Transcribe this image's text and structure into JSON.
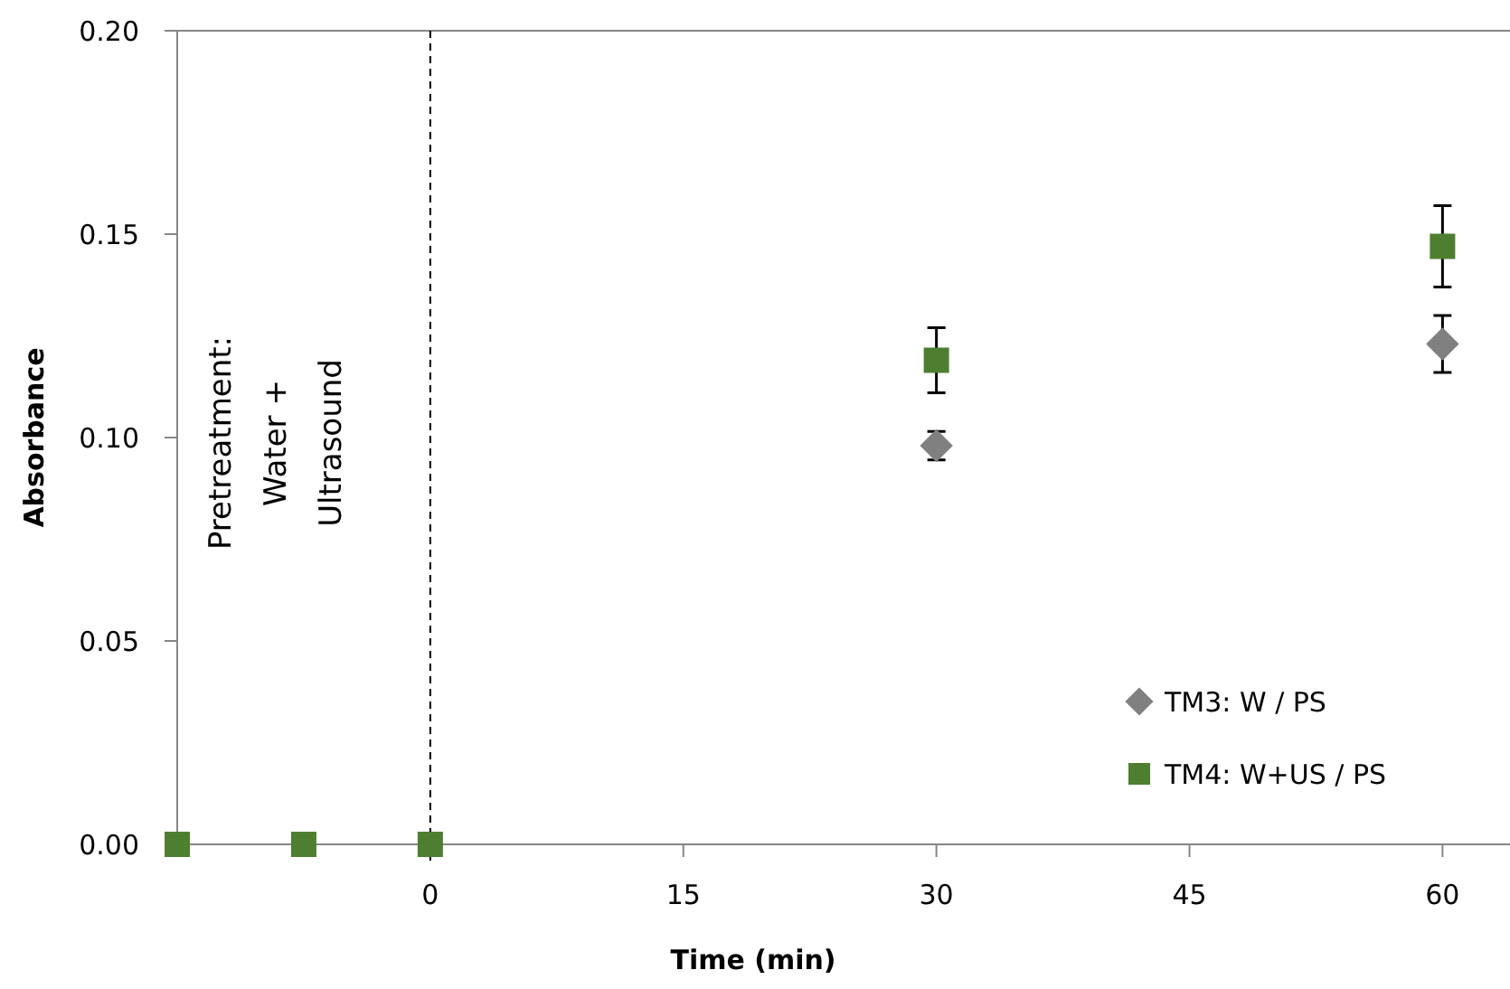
{
  "chart_data": {
    "type": "scatter",
    "xlabel": "Time (min)",
    "ylabel": "Absorbance",
    "xlim": [
      -15,
      64
    ],
    "ylim": [
      0,
      0.2
    ],
    "xticks": [
      0,
      15,
      30,
      45,
      60
    ],
    "yticks": [
      {
        "value": 0,
        "label": "0.00"
      },
      {
        "value": 0.05,
        "label": "0.05"
      },
      {
        "value": 0.1,
        "label": "0.10"
      },
      {
        "value": 0.15,
        "label": "0.15"
      },
      {
        "value": 0.2,
        "label": "0.20"
      }
    ],
    "series": [
      {
        "name": "TM3: W / PS",
        "color": "#808080",
        "marker": "diamond",
        "x": [
          30,
          60
        ],
        "values": [
          0.098,
          0.123
        ],
        "errors": [
          0.0035,
          0.007
        ]
      },
      {
        "name": "TM4: W+US / PS",
        "color": "#4e7f30",
        "marker": "square",
        "x": [
          -15,
          -7.5,
          0,
          30,
          60
        ],
        "values": [
          0,
          0,
          0,
          0.119,
          0.147
        ],
        "errors": [
          null,
          null,
          null,
          0.008,
          0.01
        ]
      }
    ],
    "ref_lines": [
      {
        "axis": "x",
        "value": 0,
        "color": "#000000",
        "line_style": "dashed"
      }
    ],
    "annotations": [
      "Pretreatment:\nWater +\nUltrasound"
    ],
    "legend": "bottom right",
    "grid": false
  }
}
